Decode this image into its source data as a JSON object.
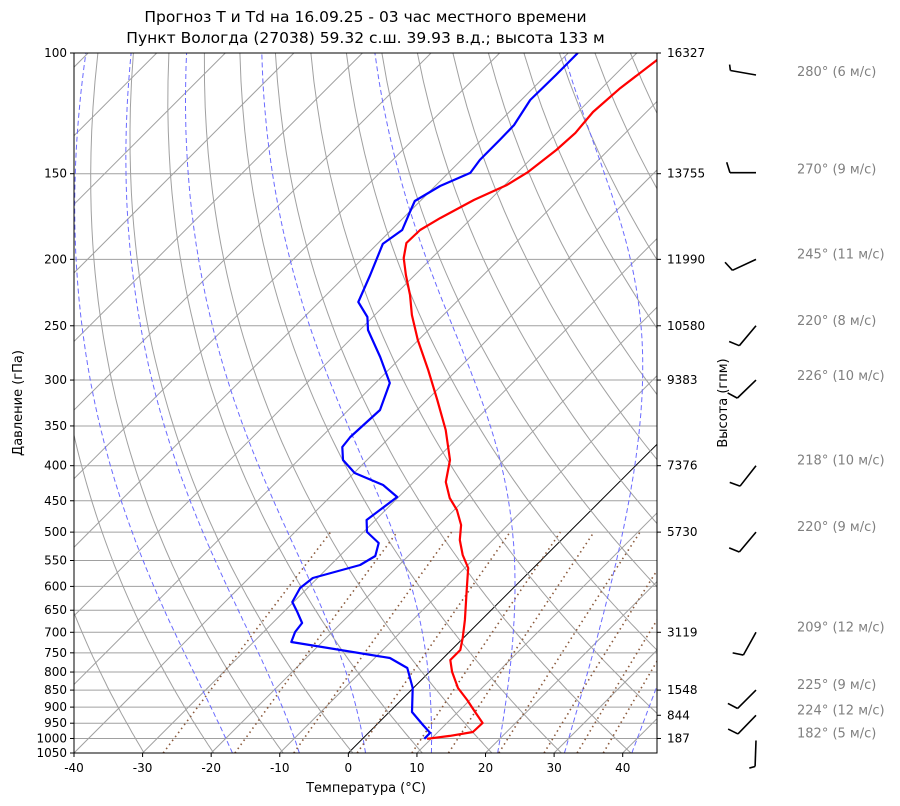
{
  "chart_data": {
    "type": "line",
    "subtype": "skew-T log-p",
    "title": [
      "Прогноз T и Td на 16.09.25 - 03 час местного времени",
      "Пункт Вологда (27038) 59.32 с.ш. 39.93 в.д.; высота 133 м"
    ],
    "xlabel": "Температура (°C)",
    "ylabel": "Давление (гПа)",
    "y2label": "Высота (гпм)",
    "xlim": [
      -40,
      45
    ],
    "ylim": [
      1050,
      100
    ],
    "yscale": "log",
    "x_ticks": [
      -40,
      -30,
      -20,
      -10,
      0,
      10,
      20,
      30,
      40
    ],
    "y_ticks": [
      100,
      150,
      200,
      250,
      300,
      350,
      400,
      450,
      500,
      550,
      600,
      650,
      700,
      750,
      800,
      850,
      900,
      950,
      1000,
      1050
    ],
    "height_ticks": [
      {
        "p": 100,
        "h": "16327"
      },
      {
        "p": 150,
        "h": "13755"
      },
      {
        "p": 200,
        "h": "11990"
      },
      {
        "p": 250,
        "h": "10580"
      },
      {
        "p": 300,
        "h": "9383"
      },
      {
        "p": 400,
        "h": "7376"
      },
      {
        "p": 500,
        "h": "5730"
      },
      {
        "p": 700,
        "h": "3119"
      },
      {
        "p": 850,
        "h": "1548"
      },
      {
        "p": 925,
        "h": "844"
      },
      {
        "p": 1000,
        "h": "187"
      }
    ],
    "temperature": {
      "color": "#ff0000",
      "p": [
        102,
        112.5,
        121.9,
        130.8,
        138.5,
        149.1,
        155.8,
        163.8,
        174.1,
        181.2,
        189.3,
        199.1,
        210.8,
        225.4,
        241.1,
        262.2,
        290,
        320.8,
        354.8,
        392.4,
        422.5,
        445.9,
        464.2,
        488.2,
        513.4,
        539.9,
        564.1,
        607.4,
        671.7,
        713.5,
        742.9,
        768.2,
        799.7,
        844,
        878.7,
        914.9,
        949.3,
        978.5,
        991.5,
        1001
      ],
      "T": [
        -56.0,
        -57.3,
        -57.8,
        -57.3,
        -57.6,
        -58.5,
        -59.7,
        -62.3,
        -64.6,
        -65.8,
        -65.9,
        -64.1,
        -61.3,
        -57.8,
        -54.6,
        -50.1,
        -44.2,
        -38.5,
        -32.9,
        -27.9,
        -25.3,
        -22.4,
        -19.6,
        -16.8,
        -14.8,
        -12.2,
        -9.5,
        -6.5,
        -2.4,
        -0.1,
        1.3,
        1.3,
        3.3,
        6.5,
        9.6,
        12.5,
        15.2,
        15.1,
        12.3,
        9.4
      ]
    },
    "dewpoint": {
      "color": "#0000ff",
      "p": [
        100,
        107.7,
        117.1,
        127.4,
        133.9,
        143.2,
        149.6,
        156.3,
        164.4,
        170.6,
        181.2,
        189.9,
        210.8,
        230.8,
        242.7,
        253.6,
        277.6,
        303,
        331.7,
        363.2,
        375.6,
        392.4,
        409.9,
        426.8,
        444.4,
        480.1,
        499.8,
        518.6,
        541.7,
        558.3,
        583.3,
        603.2,
        632.2,
        653.9,
        678.4,
        699.3,
        723.2,
        763.1,
        789.1,
        844,
        914.9,
        955.6,
        981.6,
        1001
      ],
      "Td": [
        -68.6,
        -68.6,
        -68.7,
        -67.4,
        -67.3,
        -67.3,
        -66.8,
        -69.3,
        -70.8,
        -69.9,
        -68.4,
        -69.2,
        -66.5,
        -64.3,
        -60.8,
        -58.8,
        -53.1,
        -47.9,
        -45.4,
        -45.8,
        -45.5,
        -43.5,
        -39.9,
        -34.0,
        -30.2,
        -31.3,
        -29.5,
        -26.2,
        -24.8,
        -25.7,
        -30.7,
        -31.1,
        -30.2,
        -28.0,
        -25.7,
        -25.4,
        -24.5,
        -7.8,
        -3.8,
        -0.1,
        3.3,
        6.8,
        9.0,
        9.0
      ]
    },
    "reference_lines": {
      "isobars_color": "#a0a0a0",
      "dry_adiabats_color": "#a0a0a0",
      "isotherms_color": "#a0a0a0",
      "zero_isotherm_color": "#000000",
      "moist_adiabats_color": "#6b6bff",
      "mixing_ratio_color": "#8b5a3c"
    },
    "wind": [
      {
        "p": 100,
        "dir": 280,
        "speed": 6,
        "label": "280° (6 м/с)"
      },
      {
        "p": 150,
        "dir": 270,
        "speed": 9,
        "label": "270° (9 м/с)"
      },
      {
        "p": 200,
        "dir": 245,
        "speed": 11,
        "label": "245° (11 м/с)"
      },
      {
        "p": 250,
        "dir": 220,
        "speed": 8,
        "label": "220° (8 м/с)"
      },
      {
        "p": 300,
        "dir": 226,
        "speed": 10,
        "label": "226° (10 м/с)"
      },
      {
        "p": 400,
        "dir": 218,
        "speed": 10,
        "label": "218° (10 м/с)"
      },
      {
        "p": 500,
        "dir": 220,
        "speed": 9,
        "label": "220° (9 м/с)"
      },
      {
        "p": 700,
        "dir": 209,
        "speed": 12,
        "label": "209° (12 м/с)"
      },
      {
        "p": 850,
        "dir": 225,
        "speed": 9,
        "label": "225° (9 м/с)"
      },
      {
        "p": 925,
        "dir": 224,
        "speed": 12,
        "label": "224° (12 м/с)"
      },
      {
        "p": 1000,
        "dir": 182,
        "speed": 5,
        "label": "182° (5 м/с)"
      }
    ]
  }
}
